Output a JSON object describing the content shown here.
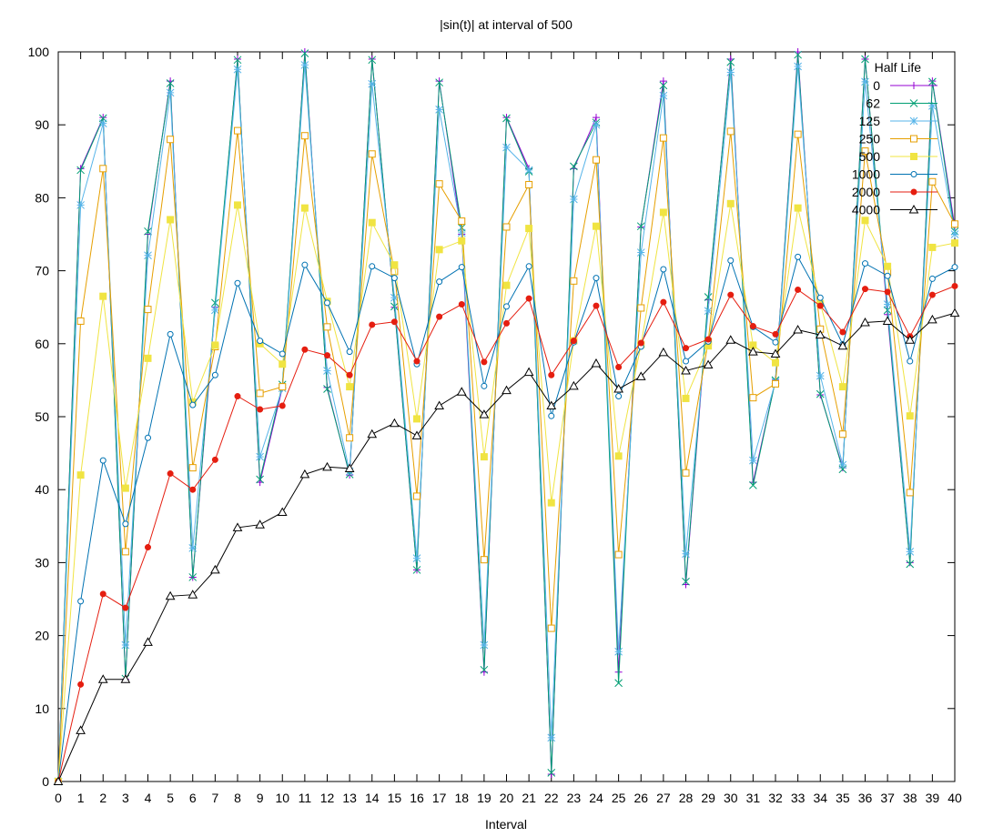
{
  "chart_data": {
    "type": "line",
    "title": "|sin(t)| at interval of 500",
    "xlabel": "Interval",
    "ylabel": "",
    "xlim": [
      0,
      40
    ],
    "ylim": [
      0,
      100
    ],
    "xticks": [
      "0",
      "1",
      "2",
      "3",
      "4",
      "5",
      "6",
      "7",
      "8",
      "9",
      "10",
      "11",
      "12",
      "13",
      "14",
      "15",
      "16",
      "17",
      "18",
      "19",
      "20",
      "21",
      "22",
      "23",
      "24",
      "25",
      "26",
      "27",
      "28",
      "29",
      "30",
      "31",
      "32",
      "33",
      "34",
      "35",
      "36",
      "37",
      "38",
      "39",
      "40"
    ],
    "yticks": [
      "0",
      "10",
      "20",
      "30",
      "40",
      "50",
      "60",
      "70",
      "80",
      "90",
      "100"
    ],
    "grid": false,
    "legend_title": "Half Life",
    "legend_position": "top-right",
    "x": [
      0,
      1,
      2,
      3,
      4,
      5,
      6,
      7,
      8,
      9,
      10,
      11,
      12,
      13,
      14,
      15,
      16,
      17,
      18,
      19,
      20,
      21,
      22,
      23,
      24,
      25,
      26,
      27,
      28,
      29,
      30,
      31,
      32,
      33,
      34,
      35,
      36,
      37,
      38,
      39,
      40
    ],
    "series": [
      {
        "name": "0",
        "color": "#9400d3",
        "marker": "plus",
        "values": [
          0,
          84,
          91,
          14,
          75,
          96,
          28,
          65,
          99,
          41,
          54,
          100,
          54,
          42,
          99,
          65,
          29,
          96,
          75,
          15,
          91,
          84,
          1,
          84,
          91,
          15,
          76,
          96,
          27,
          66,
          99,
          41,
          55,
          100,
          53,
          43,
          99,
          64,
          30,
          96,
          76
        ]
      },
      {
        "name": "62",
        "color": "#009e73",
        "marker": "cross",
        "values": [
          0,
          83.8,
          90.9,
          14.1,
          75.4,
          95.7,
          28,
          65.6,
          98.9,
          41.4,
          54.4,
          99.8,
          53.8,
          42.1,
          98.9,
          65.1,
          29,
          95.8,
          75.9,
          15.3,
          90.9,
          83.6,
          1.2,
          84.3,
          90.3,
          13.5,
          76.1,
          95.4,
          27.4,
          66.4,
          98.6,
          40.6,
          55,
          99.6,
          53.1,
          42.8,
          99,
          64.6,
          29.8,
          95.9,
          75.4
        ]
      },
      {
        "name": "125",
        "color": "#56b4e9",
        "marker": "star",
        "values": [
          0,
          79,
          90.2,
          18.7,
          72.1,
          94.4,
          32,
          64.6,
          97.6,
          44.5,
          53.9,
          98.2,
          56.3,
          42.5,
          95.6,
          66.3,
          30.6,
          92.1,
          75.2,
          18.7,
          86.9,
          83.8,
          6,
          79.8,
          90,
          17.8,
          72.5,
          94,
          31.2,
          64.5,
          97.2,
          44,
          54.8,
          98,
          55.6,
          43.4,
          95.9,
          65.4,
          31.5,
          92.6,
          75
        ]
      },
      {
        "name": "250",
        "color": "#e69f00",
        "marker": "square-open",
        "values": [
          0,
          63.1,
          84,
          31.5,
          64.7,
          88,
          43,
          59.6,
          89.2,
          53.2,
          54.1,
          88.5,
          62.3,
          47.1,
          86,
          69.9,
          39.1,
          81.9,
          76.8,
          30.4,
          76,
          81.8,
          21,
          68.6,
          85.2,
          31.1,
          64.9,
          88.2,
          42.3,
          60.3,
          89.1,
          52.6,
          54.5,
          88.7,
          62,
          47.6,
          86.4,
          69.8,
          39.6,
          82.2,
          76.4
        ]
      },
      {
        "name": "500",
        "color": "#f0e442",
        "marker": "square-filled",
        "values": [
          0,
          42,
          66.5,
          40.2,
          58,
          77,
          52,
          59.8,
          79,
          60,
          57.2,
          78.6,
          65.8,
          54.1,
          76.6,
          70.8,
          49.7,
          72.9,
          74.1,
          44.5,
          68,
          75.8,
          38.2,
          60.4,
          76.1,
          44.6,
          59.9,
          78,
          52.5,
          59.7,
          79.2,
          59.8,
          57.4,
          78.6,
          65.5,
          54.1,
          76.9,
          70.6,
          50.1,
          73.2,
          73.8
        ]
      },
      {
        "name": "1000",
        "color": "#0072b2",
        "marker": "circle-open",
        "values": [
          0,
          24.7,
          44,
          35.3,
          47.1,
          61.3,
          51.6,
          55.7,
          68.3,
          60.4,
          58.6,
          70.8,
          65.6,
          58.9,
          70.6,
          69,
          57.2,
          68.5,
          70.5,
          54.2,
          65.1,
          70.6,
          50.1,
          60.2,
          69,
          52.8,
          59.6,
          70.2,
          57.6,
          60.3,
          71.4,
          62.3,
          60.2,
          71.9,
          66.3,
          59.9,
          71,
          69.3,
          57.6,
          68.9,
          70.5
        ]
      },
      {
        "name": "2000",
        "color": "#e51e10",
        "marker": "circle-filled",
        "values": [
          0,
          13.3,
          25.7,
          23.8,
          32.1,
          42.2,
          40,
          44.1,
          52.8,
          51,
          51.5,
          59.2,
          58.4,
          55.7,
          62.6,
          63,
          57.6,
          63.7,
          65.4,
          57.5,
          62.8,
          66.2,
          55.7,
          60.4,
          65.2,
          56.8,
          60.1,
          65.7,
          59.4,
          60.6,
          66.7,
          62.4,
          61.3,
          67.4,
          65.2,
          61.6,
          67.5,
          67.1,
          61,
          66.7,
          67.9
        ]
      },
      {
        "name": "4000",
        "color": "#000000",
        "marker": "triangle-open",
        "values": [
          0,
          7,
          14,
          14,
          19.1,
          25.4,
          25.6,
          29,
          34.8,
          35.2,
          36.9,
          42.1,
          43.1,
          42.9,
          47.6,
          49.1,
          47.4,
          51.5,
          53.4,
          50.3,
          53.6,
          56.1,
          51.5,
          54.2,
          57.3,
          53.8,
          55.5,
          58.8,
          56.3,
          57.1,
          60.5,
          58.9,
          58.6,
          61.9,
          61.2,
          59.7,
          62.9,
          63.1,
          60.5,
          63.3,
          64.2
        ]
      }
    ]
  }
}
